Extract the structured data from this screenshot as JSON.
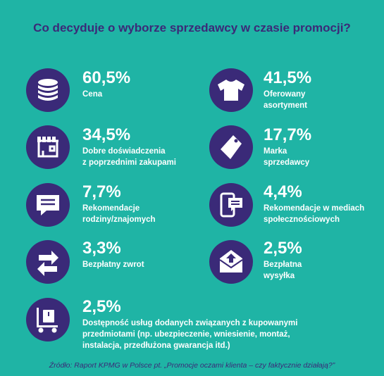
{
  "title": "Co decyduje o wyborze sprzedawcy w czasie promocji?",
  "source": "Źródło: Raport KPMG w Polsce pt. „Promocje oczami klienta – czy faktycznie działają?”",
  "colors": {
    "background": "#1fb4a5",
    "circle": "#3a2a78",
    "title": "#3b2a78",
    "text": "#ffffff"
  },
  "chart_data": {
    "type": "table",
    "title": "Co decyduje o wyborze sprzedawcy w czasie promocji?",
    "items": [
      {
        "value": "60,5%",
        "label": "Cena",
        "icon": "coins-icon"
      },
      {
        "value": "41,5%",
        "label": "Oferowany\nasortyment",
        "icon": "tshirt-icon"
      },
      {
        "value": "34,5%",
        "label": "Dobre doświadczenia\nz poprzednimi zakupami",
        "icon": "shop-icon"
      },
      {
        "value": "17,7%",
        "label": "Marka\nsprzedawcy",
        "icon": "tag-icon"
      },
      {
        "value": "7,7%",
        "label": "Rekomendacje\nrodziny/znajomych",
        "icon": "chat-bubble-icon"
      },
      {
        "value": "4,4%",
        "label": "Rekomendacje w mediach\nspołecznościowych",
        "icon": "phone-chat-icon"
      },
      {
        "value": "3,3%",
        "label": "Bezpłatny zwrot",
        "icon": "exchange-arrows-icon"
      },
      {
        "value": "2,5%",
        "label": "Bezpłatna\nwysyłka",
        "icon": "envelope-icon"
      },
      {
        "value": "2,5%",
        "label": "Dostępność usług dodanych związanych z kupowanymi\nprzedmiotami (np. ubezpieczenie, wniesienie, montaż,\ninstalacja, przedłużona gwarancja itd.)",
        "icon": "hand-truck-icon"
      }
    ]
  }
}
